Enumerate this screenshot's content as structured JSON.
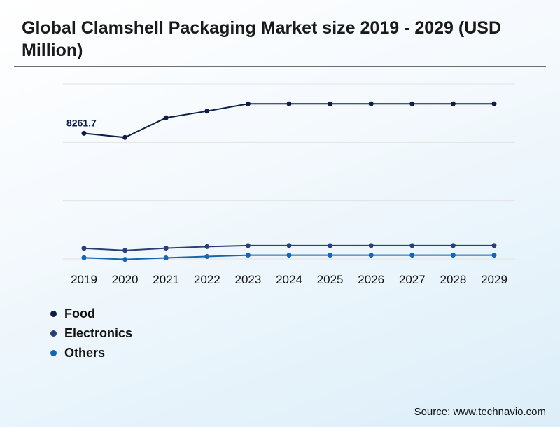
{
  "title": "Global Clamshell Packaging Market size 2019 - 2029 (USD Million)",
  "source": "Source: www.technavio.com",
  "chart_data": {
    "type": "line",
    "x": [
      "2019",
      "2020",
      "2021",
      "2022",
      "2023",
      "2024",
      "2025",
      "2026",
      "2027",
      "2028",
      "2029"
    ],
    "ylim": [
      0,
      11500
    ],
    "grid": true,
    "legend_position": "bottom-left",
    "series": [
      {
        "name": "Food",
        "color": "#0d1f45",
        "values": [
          8261.7,
          7990,
          9280,
          9720,
          10200,
          10200,
          10200,
          10200,
          10200,
          10200,
          10200
        ]
      },
      {
        "name": "Electronics",
        "color": "#2b3f77",
        "values": [
          700,
          560,
          710,
          810,
          880,
          880,
          880,
          880,
          880,
          880,
          880
        ]
      },
      {
        "name": "Others",
        "color": "#1565b0",
        "values": [
          80,
          -30,
          70,
          160,
          250,
          250,
          250,
          250,
          250,
          250,
          250
        ]
      }
    ],
    "annotations": [
      {
        "series": 0,
        "index": 0,
        "text": "8261.7"
      }
    ]
  }
}
